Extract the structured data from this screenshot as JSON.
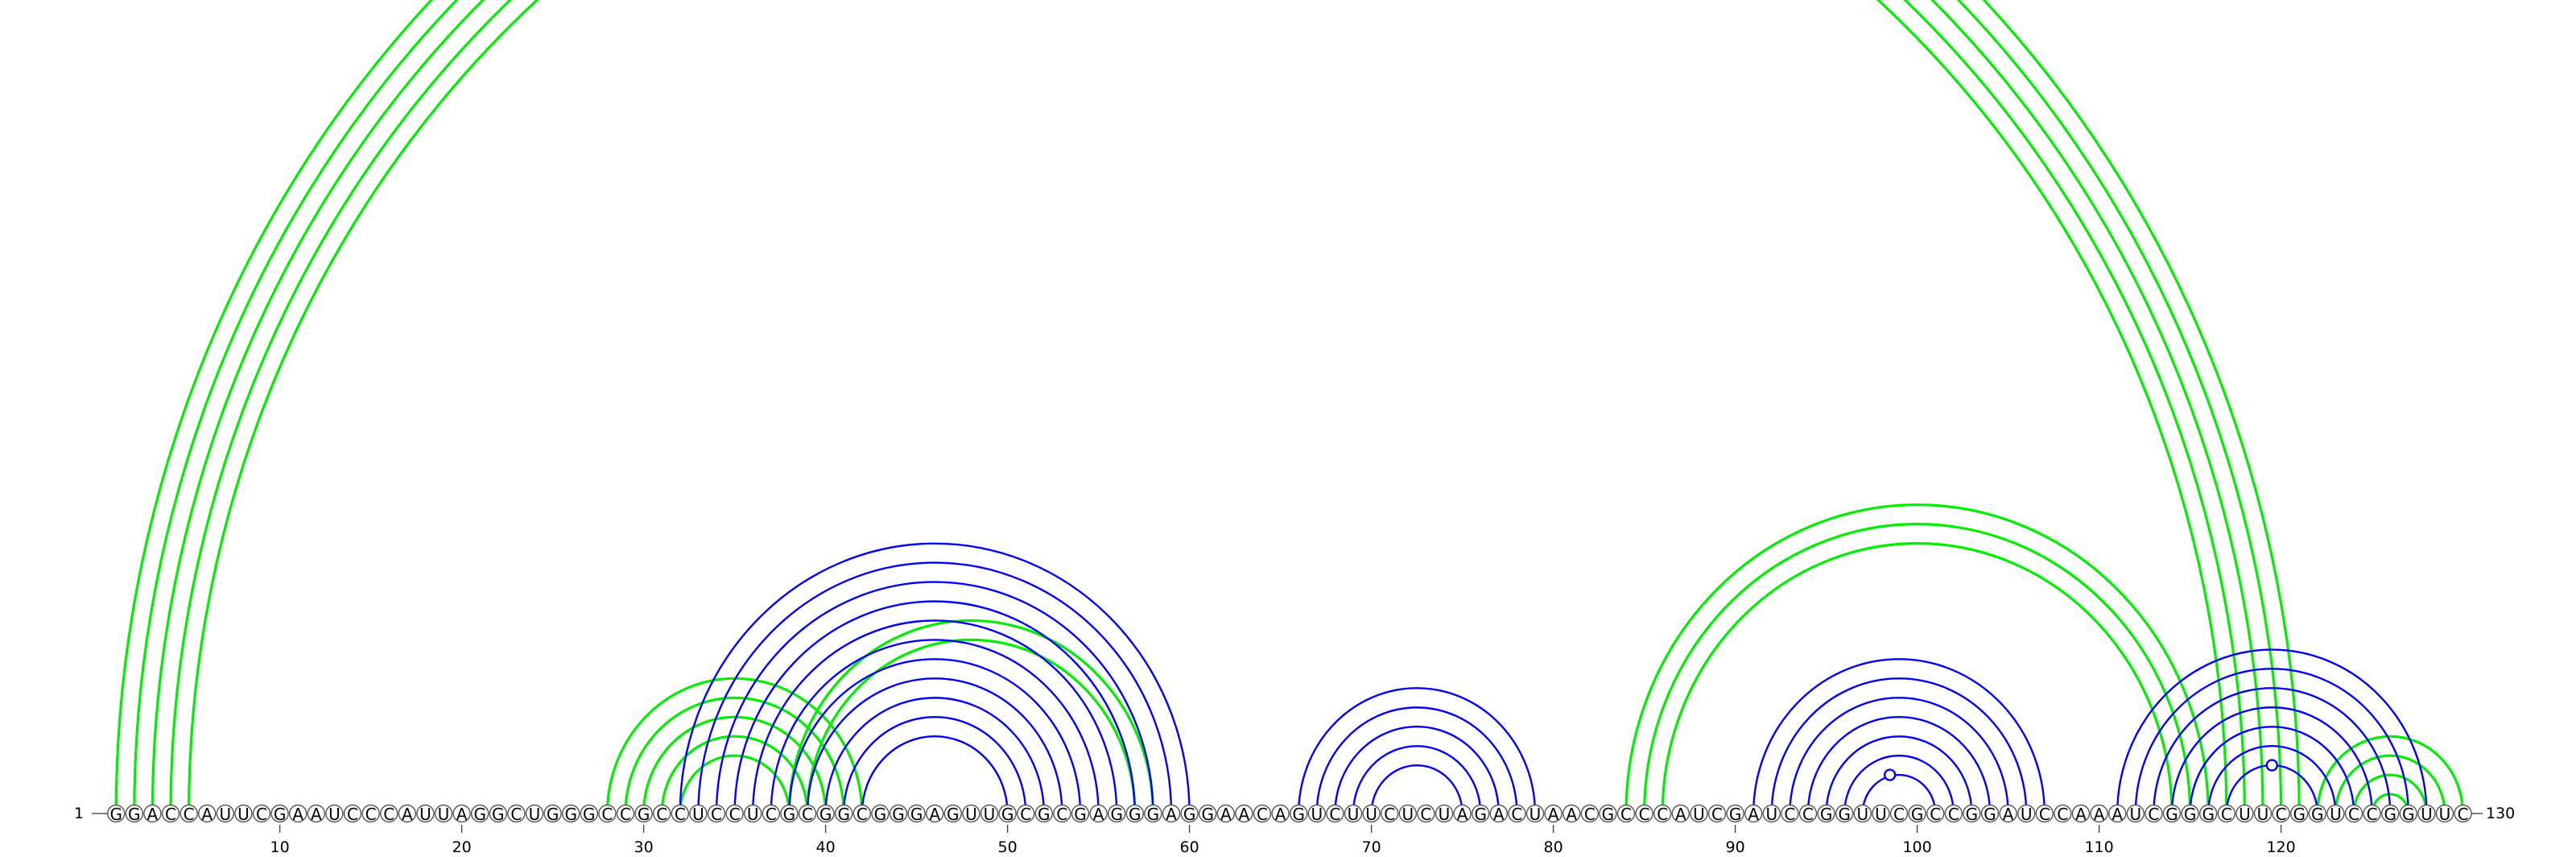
{
  "sequence": "GGACCAUUCGAAUCCCAUUAGGCUGGGCCGCCUCCUCGCGGCGGGAGUUGCGCGAGGGAGGAACAGUCUUCUCUAGACUAACGCCCAUCGAUCCGGUUCGCCGGAUCCAAAUCGGGCUUCGGUCCGGUUC",
  "start_label": "1",
  "end_label": "130",
  "ticks": [
    "10",
    "20",
    "30",
    "40",
    "50",
    "60",
    "70",
    "80",
    "90",
    "100",
    "110",
    "120"
  ],
  "colors": {
    "blue": "#0000ff",
    "green": "#00ee00"
  },
  "blue_helices": [
    {
      "i": 32,
      "j": 60,
      "n": 11
    },
    {
      "i": 66,
      "j": 79,
      "n": 5
    },
    {
      "i": 91,
      "j": 107,
      "n": 7
    },
    {
      "i": 111,
      "j": 128,
      "n": 7
    }
  ],
  "green_helices": [
    {
      "i": 1,
      "j": 121,
      "n": 5
    },
    {
      "i": 28,
      "j": 42,
      "n": 5
    },
    {
      "i": 38,
      "j": 58,
      "n": 2
    },
    {
      "i": 84,
      "j": 116,
      "n": 3
    },
    {
      "i": 122,
      "j": 130,
      "n": 5
    }
  ],
  "markers": [
    {
      "pos": 65.5,
      "color": "green",
      "side": "top"
    },
    {
      "pos": 98.5,
      "color": "blue",
      "side": "bottom"
    },
    {
      "pos": 119.5,
      "color": "blue",
      "side": "bottom"
    }
  ]
}
